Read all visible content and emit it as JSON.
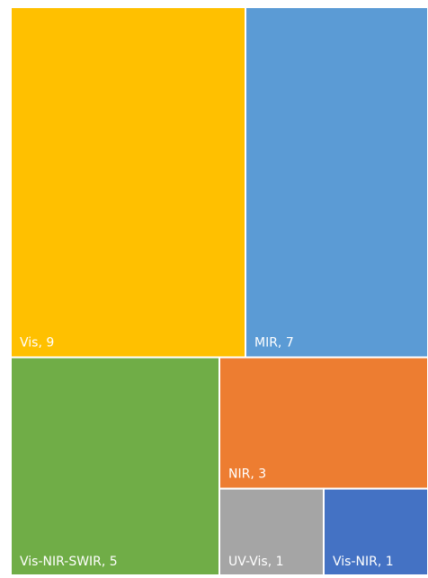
{
  "chart_data": {
    "type": "treemap",
    "values": [
      9,
      7,
      5,
      3,
      1,
      1
    ],
    "value_labels": [
      "Vis, 9",
      "MIR, 7",
      "Vis-NIR-SWIR, 5",
      "NIR, 3",
      "UV-Vis, 1",
      "Vis-NIR, 1"
    ],
    "colors": [
      "#FFC000",
      "#5B9BD5",
      "#70AD47",
      "#ED7D31",
      "#A5A5A5",
      "#4472C4"
    ]
  }
}
